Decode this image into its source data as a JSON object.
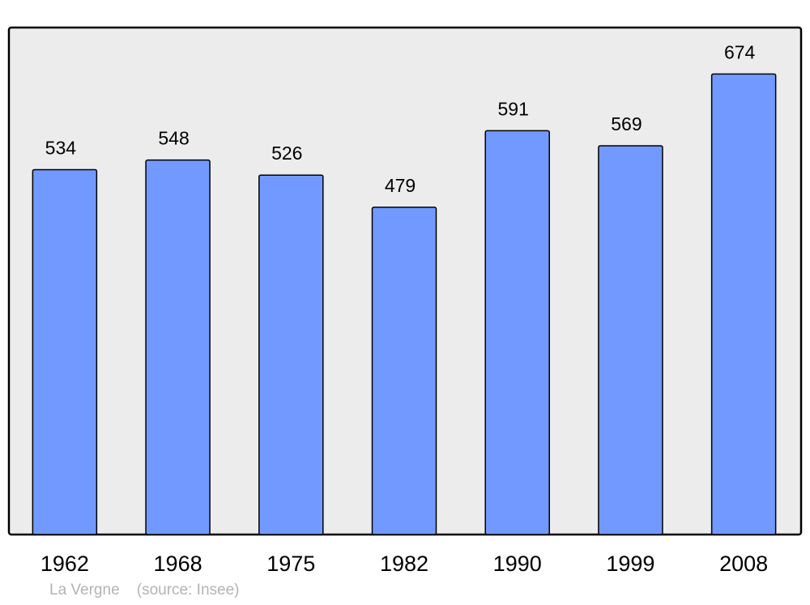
{
  "chart_data": {
    "type": "bar",
    "categories": [
      "1962",
      "1968",
      "1975",
      "1982",
      "1990",
      "1999",
      "2008"
    ],
    "values": [
      534,
      548,
      526,
      479,
      591,
      569,
      674
    ],
    "title": "",
    "xlabel": "",
    "ylabel": "",
    "ylim": [
      0,
      742
    ],
    "grid": false,
    "data_labels": true,
    "colors": {
      "bar": "#7299ff",
      "plot_background": "#ececec",
      "border": "#000000"
    }
  },
  "caption": {
    "place": "La Vergne",
    "source": "(source: Insee)"
  }
}
